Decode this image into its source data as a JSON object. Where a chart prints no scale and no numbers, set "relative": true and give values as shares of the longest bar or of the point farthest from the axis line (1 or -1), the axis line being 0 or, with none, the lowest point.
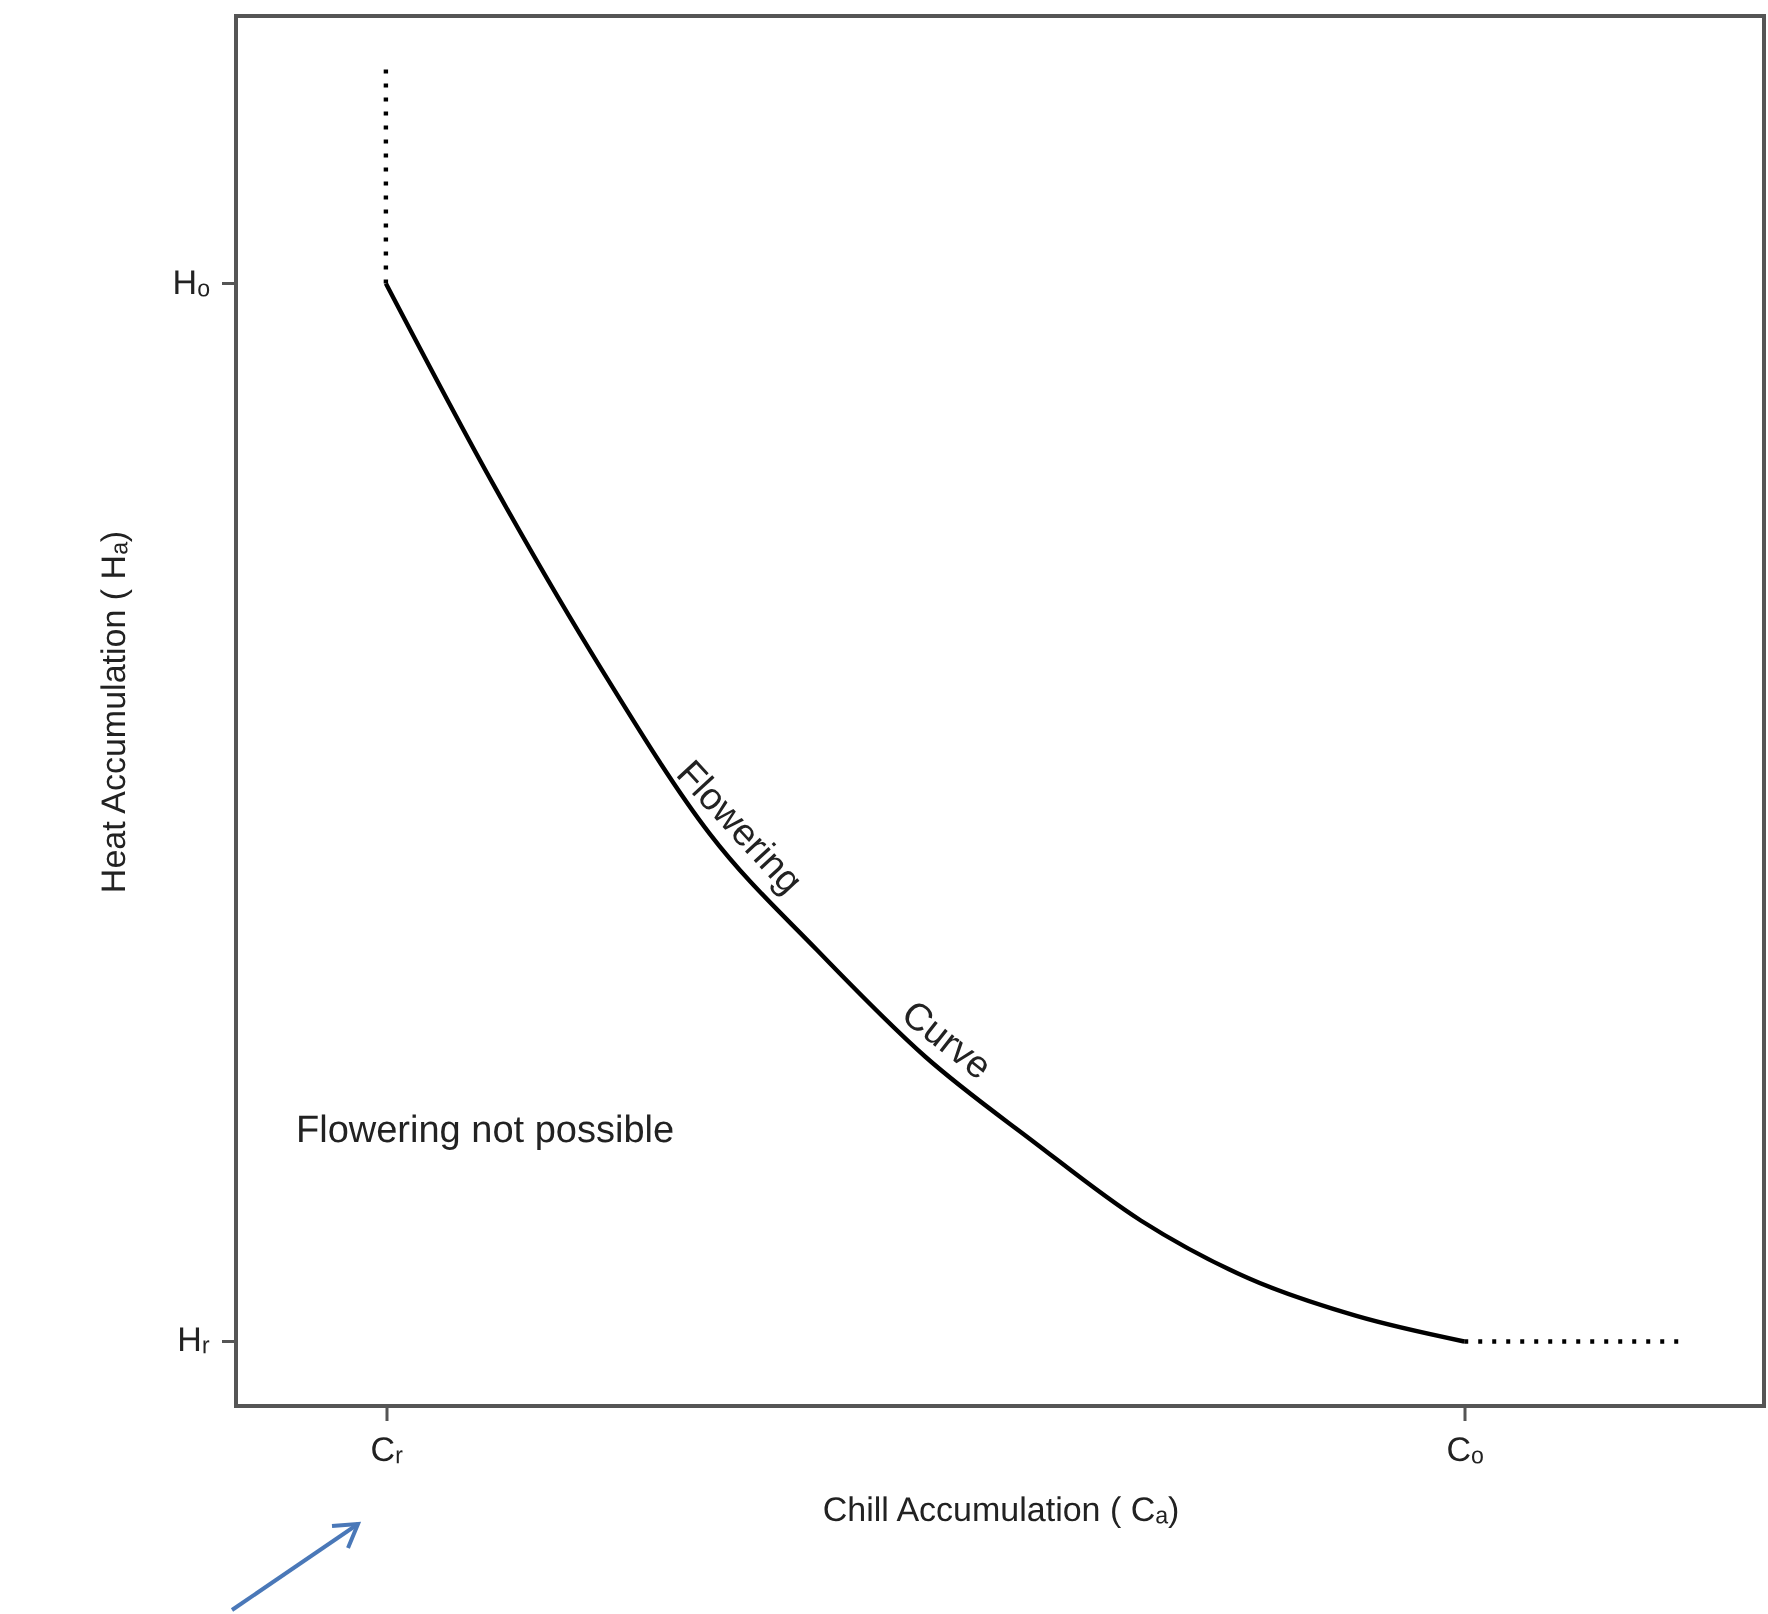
{
  "chart_data": {
    "type": "line",
    "relative": true,
    "xlabel": "Chill Accumulation ( Cₐ)",
    "ylabel": "Heat Accumulation ( Hₐ)",
    "categories": [
      "Cᵣ",
      null,
      null,
      null,
      null,
      null,
      null,
      null,
      null,
      null,
      "Cₒ",
      null,
      null
    ],
    "series": [
      {
        "color": "#000000",
        "line_style": "solid",
        "values": [
          0.835,
          0.685,
          0.548,
          0.426,
          0.339,
          0.26,
          0.197,
          0.138,
          0.095,
          0.067,
          0.048,
          null,
          null
        ]
      },
      {
        "color": "#000000",
        "line_style": "dotted",
        "x": [
          "Cᵣ",
          "Cᵣ"
        ],
        "values": [
          0.835,
          1
        ]
      },
      {
        "color": "#000000",
        "line_style": "dotted",
        "values": [
          null,
          null,
          null,
          null,
          null,
          null,
          null,
          null,
          null,
          null,
          0.048,
          0.048,
          0.048
        ]
      }
    ],
    "annotations": [
      "Flowering",
      "Curve",
      "Flowering not possible",
      "Hᵣ",
      "Hₒ"
    ]
  }
}
